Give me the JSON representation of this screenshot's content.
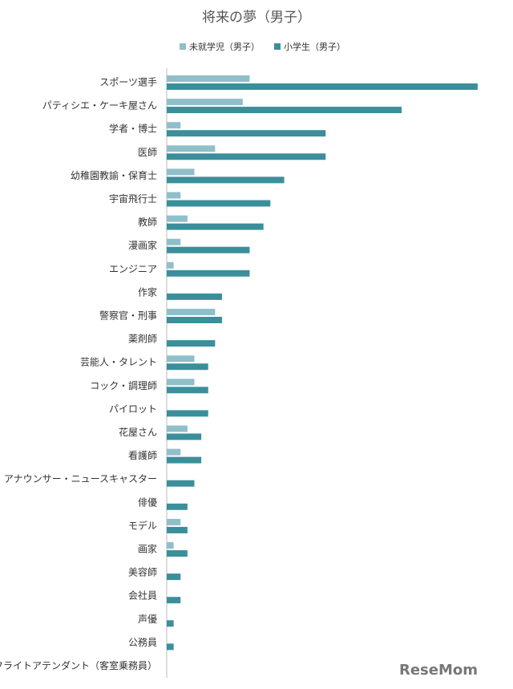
{
  "chart_data": {
    "type": "hbar",
    "title": "将来の夢（男子）",
    "categories": [
      "スポーツ選手",
      "パティシエ・ケーキ屋さん",
      "学者・博士",
      "医師",
      "幼稚園教諭・保育士",
      "宇宙飛行士",
      "教師",
      "漫画家",
      "エンジニア",
      "作家",
      "警察官・刑事",
      "薬剤師",
      "芸能人・タレント",
      "コック・調理師",
      "パイロット",
      "花屋さん",
      "看護師",
      "アナウンサー・ニュースキャスター",
      "俳優",
      "モデル",
      "画家",
      "美容師",
      "会社員",
      "声優",
      "公務員",
      "フライトアテンダント（客室乗務員）"
    ],
    "series": [
      {
        "name": "未就学児（男子）",
        "color": "#8fbfc9",
        "values": [
          12,
          11,
          2,
          7,
          4,
          2,
          3,
          2,
          1,
          0,
          7,
          0,
          4,
          4,
          0,
          3,
          2,
          0,
          0,
          2,
          1,
          0,
          0,
          0,
          0,
          0
        ]
      },
      {
        "name": "小学生（男子）",
        "color": "#3a8f9b",
        "values": [
          45,
          34,
          23,
          23,
          17,
          15,
          14,
          12,
          12,
          8,
          8,
          7,
          6,
          6,
          6,
          5,
          5,
          4,
          3,
          3,
          3,
          2,
          2,
          1,
          1,
          0
        ]
      }
    ],
    "xlim": [
      0,
      50
    ],
    "legend": "top",
    "watermark": "ReseMom"
  }
}
